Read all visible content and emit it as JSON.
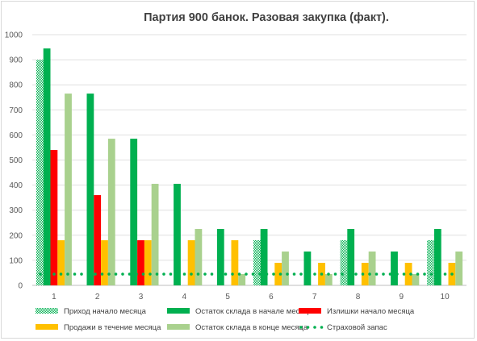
{
  "chart_data": {
    "type": "bar",
    "title": "Партия 900 банок. Разовая закупка (факт).",
    "xlabel": "",
    "ylabel": "",
    "ylim": [
      0,
      1000
    ],
    "yticks": [
      0,
      100,
      200,
      300,
      400,
      500,
      600,
      700,
      800,
      900,
      1000
    ],
    "categories": [
      "1",
      "2",
      "3",
      "4",
      "5",
      "6",
      "7",
      "8",
      "9",
      "10"
    ],
    "grid": true,
    "legend_position": "bottom",
    "series": [
      {
        "name": "Приход начало месяца",
        "kind": "bar",
        "pattern": "checker",
        "color": "#00b050",
        "values": [
          900,
          0,
          0,
          0,
          0,
          180,
          0,
          180,
          0,
          180
        ]
      },
      {
        "name": "Остаток склада в начале месяца",
        "kind": "bar",
        "color": "#00b050",
        "values": [
          945,
          765,
          585,
          405,
          225,
          225,
          135,
          225,
          135,
          225
        ]
      },
      {
        "name": "Излишки начало месяца",
        "kind": "bar",
        "color": "#ff0000",
        "values": [
          540,
          360,
          180,
          0,
          0,
          0,
          0,
          0,
          0,
          0
        ]
      },
      {
        "name": "Продажи в течение месяца",
        "kind": "bar",
        "color": "#ffc000",
        "values": [
          180,
          180,
          180,
          180,
          180,
          90,
          90,
          90,
          90,
          90
        ]
      },
      {
        "name": "Остаток склада в конце месяца",
        "kind": "bar",
        "color": "#a9d18e",
        "values": [
          765,
          585,
          405,
          225,
          45,
          135,
          45,
          135,
          45,
          135
        ]
      },
      {
        "name": "Страховой запас",
        "kind": "line",
        "style": "dotted",
        "color": "#00b050",
        "values": [
          45,
          45,
          45,
          45,
          45,
          45,
          45,
          45,
          45,
          45
        ]
      }
    ]
  }
}
